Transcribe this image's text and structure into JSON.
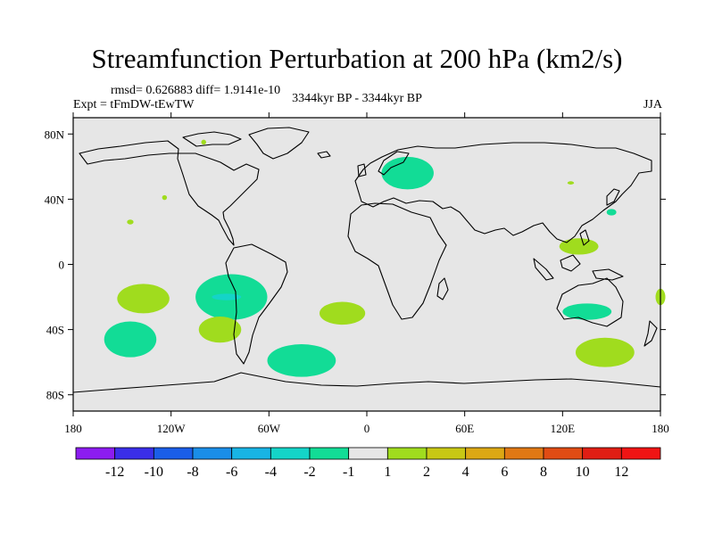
{
  "chart_data": {
    "type": "map-contour",
    "title": "Streamfunction Perturbation at 200 hPa (km2/s)",
    "stats_line": "rmsd= 0.626883 diff= 1.9141e-10",
    "experiment": "Expt = tFmDW-tEwTW",
    "period": "3344kyr BP - 3344kyr BP",
    "season": "JJA",
    "projection": "cylindrical equidistant",
    "lon_range": [
      -180,
      180
    ],
    "lat_range": [
      -90,
      90
    ],
    "x_ticks": [
      {
        "value": -180,
        "label": "180"
      },
      {
        "value": -120,
        "label": "120W"
      },
      {
        "value": -60,
        "label": "60W"
      },
      {
        "value": 0,
        "label": "0"
      },
      {
        "value": 60,
        "label": "60E"
      },
      {
        "value": 120,
        "label": "120E"
      },
      {
        "value": 180,
        "label": "180"
      }
    ],
    "y_ticks": [
      {
        "value": 80,
        "label": "80N"
      },
      {
        "value": 40,
        "label": "40N"
      },
      {
        "value": 0,
        "label": "0"
      },
      {
        "value": -40,
        "label": "40S"
      },
      {
        "value": -80,
        "label": "80S"
      }
    ],
    "colorbar": {
      "labels": [
        "-12",
        "-10",
        "-8",
        "-6",
        "-4",
        "-2",
        "-1",
        "1",
        "2",
        "4",
        "6",
        "8",
        "10",
        "12"
      ],
      "colors": [
        "#8c1cf0",
        "#3a2ee8",
        "#1a5ee8",
        "#1a8ee8",
        "#18b4e4",
        "#14d4c8",
        "#12dc96",
        "#e6e6e6",
        "#a0dc1e",
        "#c8c814",
        "#dca814",
        "#e07814",
        "#e04c14",
        "#e01e14",
        "#f01414"
      ]
    },
    "background_color": "#e6e6e6",
    "anomalies": [
      {
        "lon": -137,
        "lat": -21,
        "rlon": 16,
        "rlat": 9,
        "bin": "1 to 2",
        "color": "#a0dc1e"
      },
      {
        "lon": -145,
        "lat": -46,
        "rlon": 16,
        "rlat": 11,
        "bin": "-2 to -1",
        "color": "#12dc96"
      },
      {
        "lon": -83,
        "lat": -20,
        "rlon": 22,
        "rlat": 14,
        "bin": "-2 to -1",
        "color": "#12dc96"
      },
      {
        "lon": -86,
        "lat": -20,
        "rlon": 9,
        "rlat": 2,
        "bin": "-4 to -2",
        "color": "#14d4c8"
      },
      {
        "lon": -90,
        "lat": -40,
        "rlon": 13,
        "rlat": 8,
        "bin": "1 to 2",
        "color": "#a0dc1e"
      },
      {
        "lon": -40,
        "lat": -59,
        "rlon": 21,
        "rlat": 10,
        "bin": "-2 to -1",
        "color": "#12dc96"
      },
      {
        "lon": -15,
        "lat": -30,
        "rlon": 14,
        "rlat": 7,
        "bin": "1 to 2",
        "color": "#a0dc1e"
      },
      {
        "lon": 25,
        "lat": 56,
        "rlon": 16,
        "rlat": 10,
        "bin": "-2 to -1",
        "color": "#12dc96"
      },
      {
        "lon": 135,
        "lat": -29,
        "rlon": 15,
        "rlat": 5,
        "bin": "-2 to -1",
        "color": "#12dc96"
      },
      {
        "lon": 146,
        "lat": -54,
        "rlon": 18,
        "rlat": 9,
        "bin": "1 to 2",
        "color": "#a0dc1e"
      },
      {
        "lon": 130,
        "lat": 11,
        "rlon": 12,
        "rlat": 5,
        "bin": "1 to 2",
        "color": "#a0dc1e"
      },
      {
        "lon": 150,
        "lat": 32,
        "rlon": 3,
        "rlat": 2,
        "bin": "-2 to -1",
        "color": "#12dc96"
      },
      {
        "lon": 125,
        "lat": 50,
        "rlon": 2,
        "rlat": 1,
        "bin": "1 to 2",
        "color": "#a0dc1e"
      },
      {
        "lon": 180,
        "lat": -20,
        "rlon": 3,
        "rlat": 5,
        "bin": "1 to 2",
        "color": "#a0dc1e"
      },
      {
        "lon": -145,
        "lat": 26,
        "rlon": 2,
        "rlat": 1.5,
        "bin": "1 to 2",
        "color": "#a0dc1e"
      },
      {
        "lon": -124,
        "lat": 41,
        "rlon": 1.5,
        "rlat": 1.5,
        "bin": "1 to 2",
        "color": "#a0dc1e"
      },
      {
        "lon": -100,
        "lat": 75,
        "rlon": 1.5,
        "rlat": 1.5,
        "bin": "1 to 2",
        "color": "#a0dc1e"
      }
    ]
  }
}
